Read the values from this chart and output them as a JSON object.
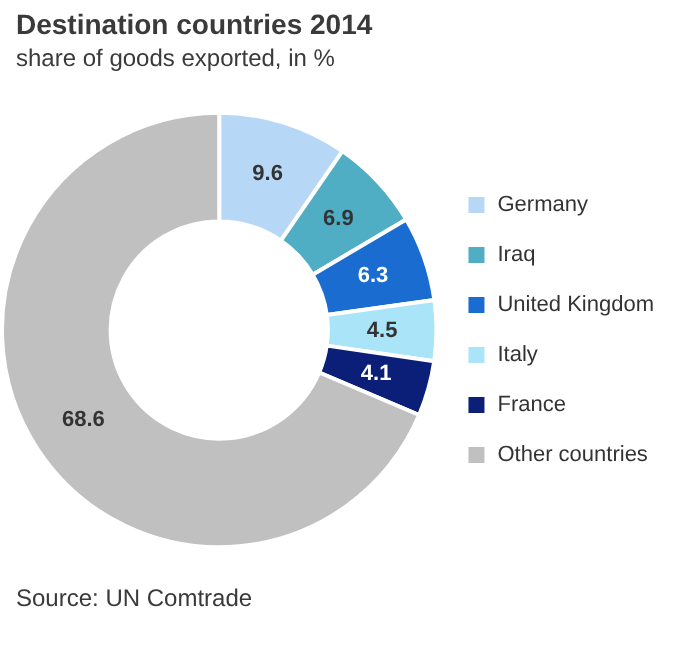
{
  "chart_data": {
    "type": "donut",
    "title": "Destination countries 2014",
    "subtitle": "share of goods exported, in %",
    "categories": [
      "Germany",
      "Iraq",
      "United Kingdom",
      "Italy",
      "France",
      "Other countries"
    ],
    "values": [
      9.6,
      6.9,
      6.3,
      4.5,
      4.1,
      68.6
    ],
    "colors": [
      "#b7d7f7",
      "#4fadc4",
      "#1a6cd0",
      "#a9e4f8",
      "#0b1f78",
      "#c0c0c0"
    ],
    "data_labels": true,
    "legend": "right",
    "annotations": [
      "Source: UN Comtrade"
    ]
  }
}
